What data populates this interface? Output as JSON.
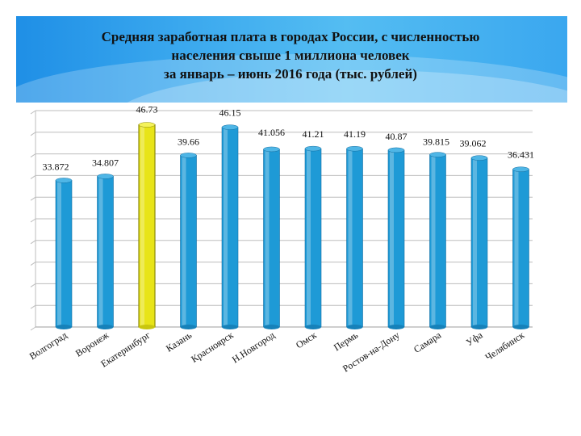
{
  "slide": {
    "title_lines": [
      "Средняя заработная плата в городах России, с численностью",
      "населения свыше 1 миллиона человек",
      "за январь – июнь 2016 года (тыс. рублей)"
    ]
  },
  "colors": {
    "bar": "#1e9ad6",
    "highlight_bar": "#e8e418",
    "header": "#2fa0ea"
  },
  "chart_data": {
    "type": "bar",
    "title": "Средняя заработная плата в городах России, с численностью населения свыше 1 миллиона человек за январь – июнь 2016 года (тыс. рублей)",
    "categories": [
      "Волгоград",
      "Воронеж",
      "Екатеринбург",
      "Казань",
      "Красноярск",
      "Н.Новгород",
      "Омск",
      "Пермь",
      "Ростов-на-Дону",
      "Самара",
      "Уфа",
      "Челябинск"
    ],
    "values": [
      33.872,
      34.807,
      46.73,
      39.66,
      46.15,
      41.056,
      41.21,
      41.19,
      40.87,
      39.815,
      39.062,
      36.431
    ],
    "value_labels": [
      "33.872",
      "34.807",
      "46.73",
      "39.66",
      "46.15",
      "41.056",
      "41.21",
      "41.19",
      "40.87",
      "39.815",
      "39.062",
      "36.431"
    ],
    "highlight_index": 2,
    "ylim": [
      0,
      50
    ],
    "grid": true,
    "legend": "none"
  }
}
